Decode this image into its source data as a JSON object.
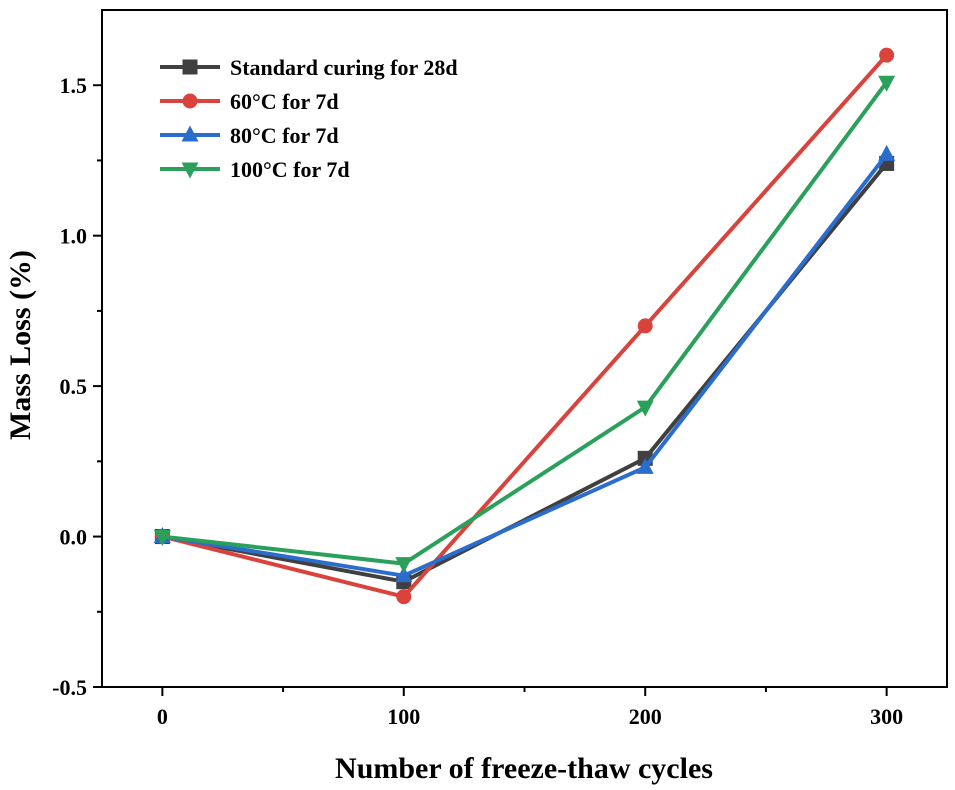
{
  "chart_data": {
    "type": "line",
    "title": "",
    "xlabel": "Number of freeze-thaw cycles",
    "ylabel": "Mass Loss (%)",
    "x": [
      0,
      100,
      200,
      300
    ],
    "xlim": [
      -25,
      325
    ],
    "ylim": [
      -0.5,
      1.75
    ],
    "xticks": [
      0,
      100,
      200,
      300
    ],
    "xtick_labels": [
      "0",
      "100",
      "200",
      "300"
    ],
    "yticks": [
      -0.5,
      0.0,
      0.5,
      1.0,
      1.5
    ],
    "ytick_labels": [
      "-0.5",
      "0.0",
      "0.5",
      "1.0",
      "1.5"
    ],
    "grid": false,
    "legend_position": "top-left",
    "series": [
      {
        "name": "Standard curing for 28d",
        "values": [
          0,
          -0.15,
          0.26,
          1.24
        ],
        "color": "#404040",
        "marker": "square"
      },
      {
        "name": "60°C for 7d",
        "values": [
          0,
          -0.2,
          0.7,
          1.6
        ],
        "color": "#d9433c",
        "marker": "circle"
      },
      {
        "name": "80°C for 7d",
        "values": [
          0,
          -0.13,
          0.23,
          1.27
        ],
        "color": "#2b6dcc",
        "marker": "triangle-up"
      },
      {
        "name": "100°C for 7d",
        "values": [
          0,
          -0.09,
          0.43,
          1.51
        ],
        "color": "#2aa05a",
        "marker": "triangle-down"
      }
    ]
  }
}
